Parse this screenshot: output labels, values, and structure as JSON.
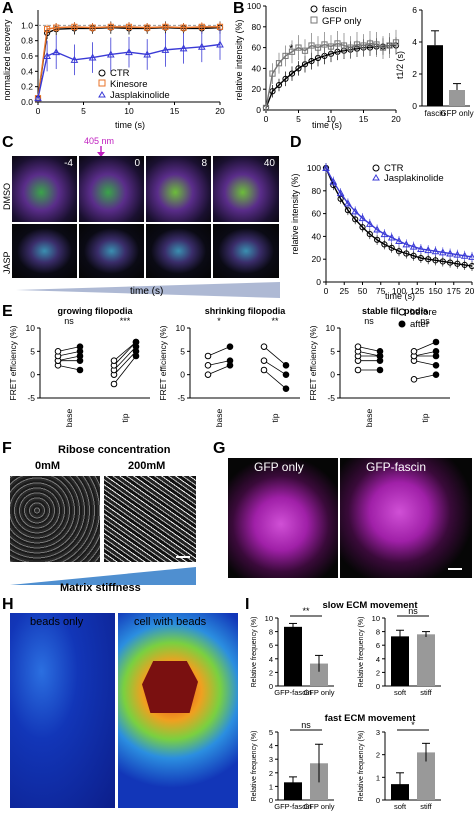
{
  "panels": {
    "A": {
      "label": "A",
      "ylabel": "normalized recovery",
      "xlabel": "time (s)",
      "yticks": [
        "0.0",
        "0.2",
        "0.4",
        "0.6",
        "0.8",
        "1.0"
      ],
      "xticks": [
        "0",
        "5",
        "10",
        "15",
        "20"
      ],
      "legend": [
        "CTR",
        "Kinesore",
        "Jasplakinolide"
      ],
      "colors": {
        "ctr": "#000000",
        "kinesore": "#e8732a",
        "jasp": "#3a3ad6"
      }
    },
    "B": {
      "label": "B",
      "ylabel": "relative intensity (%)",
      "xlabel": "time (s)",
      "yticks": [
        "0",
        "20",
        "40",
        "60",
        "80",
        "100"
      ],
      "xticks": [
        "0",
        "5",
        "10",
        "15",
        "20"
      ],
      "legend": [
        "fascin",
        "GFP only"
      ],
      "star": "*",
      "bar": {
        "ylabel": "t1/2 (s)",
        "yticks": [
          "0",
          "2",
          "4",
          "6"
        ],
        "categories": [
          "fascin",
          "GFP only"
        ],
        "values": [
          3.8,
          1.0
        ],
        "errors": [
          0.9,
          0.4
        ]
      }
    },
    "C": {
      "label": "C",
      "nm": "405 nm",
      "rows": [
        "DMSO",
        "JASP"
      ],
      "times": [
        "-4",
        "0",
        "8",
        "40"
      ],
      "xlabel": "time (s)"
    },
    "D": {
      "label": "D",
      "ylabel": "relative intensity (%)",
      "xlabel": "time (s)",
      "yticks": [
        "0",
        "20",
        "40",
        "60",
        "80",
        "100"
      ],
      "xticks": [
        "0",
        "25",
        "50",
        "75",
        "100",
        "125",
        "150",
        "175",
        "200"
      ],
      "legend": [
        "CTR",
        "Jasplakinolide"
      ]
    },
    "E": {
      "label": "E",
      "ylabel": "FRET efficiency (%)",
      "yticks": [
        "-5",
        "0",
        "5",
        "10"
      ],
      "legend": [
        "before",
        "after"
      ],
      "groups": [
        {
          "title": "growing filopodia",
          "sig": [
            "ns",
            "***"
          ],
          "cats": [
            "base",
            "tip"
          ]
        },
        {
          "title": "shrinking filopodia",
          "sig": [
            "*",
            "**"
          ],
          "cats": [
            "base",
            "tip"
          ]
        },
        {
          "title": "stable filopodia",
          "sig": [
            "ns",
            "ns"
          ],
          "cats": [
            "base",
            "tip"
          ]
        }
      ]
    },
    "F": {
      "label": "F",
      "title": "Ribose concentration",
      "conc": [
        "0mM",
        "200mM"
      ],
      "stiffness": "Matrix stiffness"
    },
    "G": {
      "label": "G",
      "titles": [
        "GFP only",
        "GFP-fascin"
      ]
    },
    "H": {
      "label": "H",
      "titles": [
        "beads only",
        "cell with beads"
      ]
    },
    "I": {
      "label": "I",
      "slow_title": "slow ECM movement",
      "fast_title": "fast ECM movement",
      "ylabel": "Relative frequency (%)",
      "sig_slow": [
        "**",
        "ns"
      ],
      "sig_fast": [
        "ns",
        "*"
      ],
      "slow_yticks": [
        "0",
        "2",
        "4",
        "6",
        "8",
        "10"
      ],
      "fast_yticks": [
        "0",
        "1",
        "2",
        "3",
        "4",
        "5"
      ]
    }
  },
  "chart_data": [
    {
      "type": "line",
      "panel": "A",
      "xlabel": "time (s)",
      "ylabel": "normalized recovery",
      "xlim": [
        0,
        20
      ],
      "ylim": [
        0,
        1.2
      ],
      "x": [
        0,
        1,
        2,
        4,
        6,
        8,
        10,
        12,
        14,
        16,
        18,
        20
      ],
      "series": [
        {
          "name": "CTR",
          "values": [
            0.05,
            0.9,
            0.95,
            0.96,
            0.96,
            0.97,
            0.96,
            0.96,
            0.97,
            0.96,
            0.96,
            0.97
          ],
          "errors": [
            0.05,
            0.08,
            0.08,
            0.08,
            0.07,
            0.08,
            0.08,
            0.07,
            0.08,
            0.07,
            0.07,
            0.08
          ]
        },
        {
          "name": "Kinesore",
          "values": [
            0.05,
            0.95,
            0.97,
            0.98,
            0.97,
            0.98,
            0.98,
            0.97,
            0.98,
            0.97,
            0.98,
            0.98
          ],
          "errors": [
            0.05,
            0.06,
            0.06,
            0.06,
            0.06,
            0.06,
            0.06,
            0.06,
            0.06,
            0.06,
            0.06,
            0.06
          ]
        },
        {
          "name": "Jasplakinolide",
          "values": [
            0.05,
            0.6,
            0.65,
            0.55,
            0.58,
            0.62,
            0.65,
            0.62,
            0.68,
            0.7,
            0.72,
            0.75
          ],
          "errors": [
            0.05,
            0.2,
            0.22,
            0.2,
            0.2,
            0.22,
            0.2,
            0.2,
            0.22,
            0.2,
            0.2,
            0.2
          ]
        }
      ]
    },
    {
      "type": "line",
      "panel": "B",
      "xlabel": "time (s)",
      "ylabel": "relative intensity (%)",
      "xlim": [
        0,
        20
      ],
      "ylim": [
        0,
        100
      ],
      "x": [
        0,
        1,
        2,
        3,
        4,
        5,
        6,
        7,
        8,
        9,
        10,
        11,
        12,
        13,
        14,
        15,
        16,
        17,
        18,
        19,
        20
      ],
      "series": [
        {
          "name": "fascin",
          "values": [
            2,
            18,
            24,
            30,
            35,
            40,
            44,
            47,
            50,
            52,
            54,
            56,
            57,
            58,
            59,
            60,
            60,
            61,
            61,
            62,
            62
          ],
          "errors": [
            2,
            6,
            6,
            7,
            7,
            7,
            8,
            8,
            8,
            8,
            8,
            8,
            8,
            8,
            8,
            8,
            8,
            8,
            8,
            8,
            8
          ]
        },
        {
          "name": "GFP only",
          "values": [
            2,
            35,
            45,
            52,
            56,
            60,
            57,
            62,
            60,
            63,
            61,
            64,
            62,
            60,
            63,
            62,
            64,
            63,
            60,
            62,
            65
          ],
          "errors": [
            2,
            10,
            10,
            10,
            11,
            12,
            11,
            12,
            11,
            12,
            11,
            12,
            12,
            11,
            12,
            11,
            12,
            12,
            11,
            12,
            12
          ]
        }
      ]
    },
    {
      "type": "bar",
      "panel": "B-inset",
      "ylabel": "t1/2 (s)",
      "categories": [
        "fascin",
        "GFP only"
      ],
      "values": [
        3.8,
        1.0
      ],
      "ylim": [
        0,
        6
      ]
    },
    {
      "type": "line",
      "panel": "D",
      "xlabel": "time (s)",
      "ylabel": "relative intensity (%)",
      "xlim": [
        0,
        200
      ],
      "ylim": [
        0,
        100
      ],
      "x": [
        0,
        10,
        20,
        30,
        40,
        50,
        60,
        70,
        80,
        90,
        100,
        110,
        120,
        130,
        140,
        150,
        160,
        170,
        180,
        190,
        200
      ],
      "series": [
        {
          "name": "CTR",
          "values": [
            100,
            85,
            73,
            63,
            55,
            48,
            42,
            37,
            33,
            30,
            27,
            25,
            23,
            21,
            20,
            19,
            18,
            17,
            16,
            15,
            14
          ]
        },
        {
          "name": "Jasplakinolide",
          "values": [
            100,
            88,
            78,
            69,
            62,
            56,
            51,
            46,
            42,
            39,
            36,
            33,
            31,
            29,
            28,
            27,
            26,
            25,
            24,
            23,
            22
          ]
        }
      ]
    },
    {
      "type": "scatter",
      "panel": "E",
      "ylabel": "FRET efficiency (%)",
      "ylim": [
        -5,
        10
      ],
      "groups": [
        {
          "title": "growing filopodia",
          "base": {
            "before": [
              2,
              3,
              3,
              4,
              5
            ],
            "after": [
              1,
              3,
              4,
              5,
              6
            ]
          },
          "tip": {
            "before": [
              -2,
              0,
              1,
              2,
              3
            ],
            "after": [
              4,
              5,
              6,
              7,
              7
            ]
          }
        },
        {
          "title": "shrinking filopodia",
          "base": {
            "before": [
              0,
              2,
              4
            ],
            "after": [
              2,
              3,
              6
            ]
          },
          "tip": {
            "before": [
              1,
              3,
              6
            ],
            "after": [
              -3,
              0,
              2
            ]
          }
        },
        {
          "title": "stable filopodia",
          "base": {
            "before": [
              1,
              3,
              4,
              5,
              6
            ],
            "after": [
              1,
              3,
              4,
              4,
              5
            ]
          },
          "tip": {
            "before": [
              -1,
              3,
              4,
              4,
              5
            ],
            "after": [
              0,
              2,
              4,
              5,
              7
            ]
          }
        }
      ]
    },
    {
      "type": "bar",
      "panel": "I-slow-1",
      "ylabel": "Relative frequency (%)",
      "categories": [
        "GFP-fascin",
        "GFP only"
      ],
      "values": [
        8.7,
        3.3
      ],
      "errors": [
        0.5,
        1.2
      ],
      "ylim": [
        0,
        10
      ]
    },
    {
      "type": "bar",
      "panel": "I-slow-2",
      "ylabel": "Relative frequency (%)",
      "categories": [
        "soft",
        "stiff"
      ],
      "values": [
        7.3,
        7.6
      ],
      "errors": [
        0.9,
        0.4
      ],
      "ylim": [
        0,
        10
      ]
    },
    {
      "type": "bar",
      "panel": "I-fast-1",
      "ylabel": "Relative frequency (%)",
      "categories": [
        "GFP-fascin",
        "GFP only"
      ],
      "values": [
        1.3,
        2.7
      ],
      "errors": [
        0.4,
        1.4
      ],
      "ylim": [
        0,
        5
      ]
    },
    {
      "type": "bar",
      "panel": "I-fast-2",
      "ylabel": "Relative frequency (%)",
      "categories": [
        "soft",
        "stiff"
      ],
      "values": [
        0.7,
        2.1
      ],
      "errors": [
        0.5,
        0.4
      ],
      "ylim": [
        0,
        3
      ]
    }
  ]
}
